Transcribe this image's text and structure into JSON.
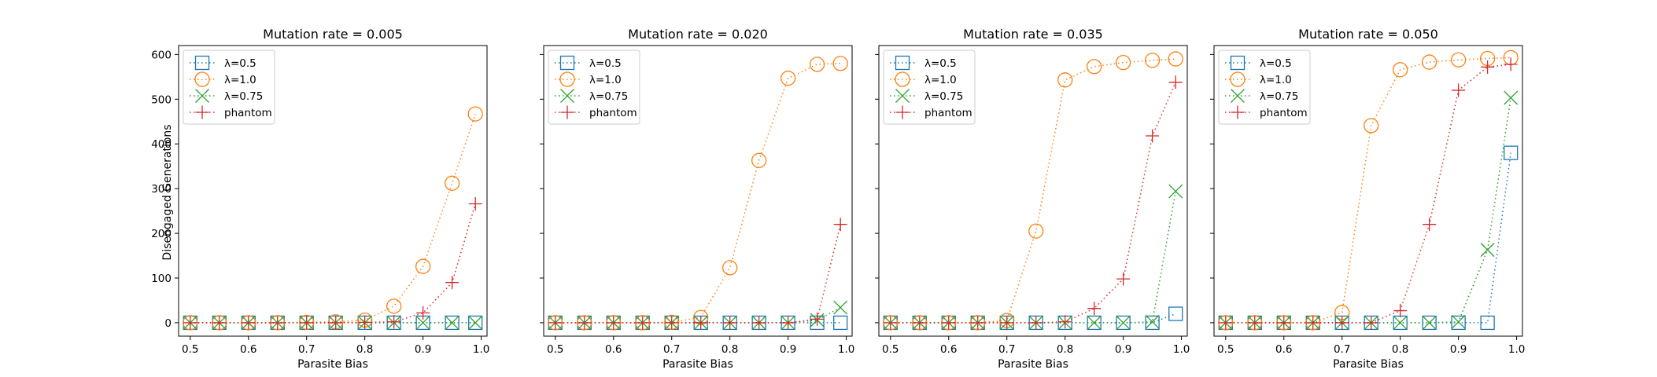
{
  "figure": {
    "shared_ylabel": "Disengaged Generations",
    "shared_xlabel": "Parasite Bias"
  },
  "legend_labels": [
    "λ=0.5",
    "λ=1.0",
    "λ=0.75",
    "phantom"
  ],
  "chart_data": [
    {
      "type": "line",
      "title": "Mutation rate = 0.005",
      "xlabel": "Parasite Bias",
      "ylabel": "Disengaged Generations",
      "x": [
        0.5,
        0.55,
        0.6,
        0.65,
        0.7,
        0.75,
        0.8,
        0.85,
        0.9,
        0.95,
        0.99
      ],
      "xlim": [
        0.48,
        1.01
      ],
      "ylim": [
        -30,
        620
      ],
      "xticks": [
        "0.5",
        "0.6",
        "0.7",
        "0.8",
        "0.9",
        "1.0"
      ],
      "yticks": [
        "0",
        "100",
        "200",
        "300",
        "400",
        "500",
        "600"
      ],
      "legend": "top-left",
      "series": [
        {
          "name": "λ=0.5",
          "color": "#1f77b4",
          "marker": "square",
          "values": [
            0,
            0,
            0,
            0,
            0,
            0,
            0,
            0,
            0,
            0,
            0
          ]
        },
        {
          "name": "λ=1.0",
          "color": "#ff7f0e",
          "marker": "circle",
          "values": [
            0,
            0,
            0,
            0,
            1,
            2,
            6,
            37,
            126,
            312,
            467
          ]
        },
        {
          "name": "λ=0.75",
          "color": "#2ca02c",
          "marker": "x",
          "values": [
            0,
            0,
            0,
            0,
            0,
            0,
            0,
            0,
            0,
            0,
            0
          ]
        },
        {
          "name": "phantom",
          "color": "#d62728",
          "marker": "plus",
          "values": [
            0,
            0,
            0,
            0,
            0,
            0,
            1,
            2,
            22,
            90,
            266
          ]
        }
      ]
    },
    {
      "type": "line",
      "title": "Mutation rate = 0.020",
      "xlabel": "Parasite Bias",
      "ylabel": "",
      "x": [
        0.5,
        0.55,
        0.6,
        0.65,
        0.7,
        0.75,
        0.8,
        0.85,
        0.9,
        0.95,
        0.99
      ],
      "xlim": [
        0.48,
        1.01
      ],
      "ylim": [
        -30,
        620
      ],
      "xticks": [
        "0.5",
        "0.6",
        "0.7",
        "0.8",
        "0.9",
        "1.0"
      ],
      "legend": "top-left",
      "series": [
        {
          "name": "λ=0.5",
          "color": "#1f77b4",
          "marker": "square",
          "values": [
            0,
            0,
            0,
            0,
            0,
            0,
            0,
            0,
            0,
            0,
            0
          ]
        },
        {
          "name": "λ=1.0",
          "color": "#ff7f0e",
          "marker": "circle",
          "values": [
            0,
            0,
            0,
            0,
            1,
            12,
            123,
            363,
            547,
            578,
            580
          ]
        },
        {
          "name": "λ=0.75",
          "color": "#2ca02c",
          "marker": "x",
          "values": [
            0,
            0,
            0,
            0,
            0,
            0,
            0,
            0,
            0,
            6,
            34
          ]
        },
        {
          "name": "phantom",
          "color": "#d62728",
          "marker": "plus",
          "values": [
            0,
            0,
            0,
            0,
            0,
            0,
            0,
            0,
            0,
            8,
            220
          ]
        }
      ]
    },
    {
      "type": "line",
      "title": "Mutation rate = 0.035",
      "xlabel": "Parasite Bias",
      "ylabel": "",
      "x": [
        0.5,
        0.55,
        0.6,
        0.65,
        0.7,
        0.75,
        0.8,
        0.85,
        0.9,
        0.95,
        0.99
      ],
      "xlim": [
        0.48,
        1.01
      ],
      "ylim": [
        -30,
        620
      ],
      "xticks": [
        "0.5",
        "0.6",
        "0.7",
        "0.8",
        "0.9",
        "1.0"
      ],
      "legend": "top-left",
      "series": [
        {
          "name": "λ=0.5",
          "color": "#1f77b4",
          "marker": "square",
          "values": [
            0,
            0,
            0,
            0,
            0,
            0,
            0,
            0,
            0,
            0,
            20
          ]
        },
        {
          "name": "λ=1.0",
          "color": "#ff7f0e",
          "marker": "circle",
          "values": [
            0,
            0,
            0,
            0,
            5,
            205,
            543,
            573,
            582,
            587,
            590
          ]
        },
        {
          "name": "λ=0.75",
          "color": "#2ca02c",
          "marker": "x",
          "values": [
            0,
            0,
            0,
            0,
            0,
            0,
            0,
            0,
            0,
            2,
            294
          ]
        },
        {
          "name": "phantom",
          "color": "#d62728",
          "marker": "plus",
          "values": [
            0,
            0,
            0,
            0,
            0,
            0,
            2,
            32,
            98,
            418,
            538
          ]
        }
      ]
    },
    {
      "type": "line",
      "title": "Mutation rate = 0.050",
      "xlabel": "Parasite Bias",
      "ylabel": "",
      "x": [
        0.5,
        0.55,
        0.6,
        0.65,
        0.7,
        0.75,
        0.8,
        0.85,
        0.9,
        0.95,
        0.99
      ],
      "xlim": [
        0.48,
        1.01
      ],
      "ylim": [
        -30,
        620
      ],
      "xticks": [
        "0.5",
        "0.6",
        "0.7",
        "0.8",
        "0.9",
        "1.0"
      ],
      "legend": "top-left",
      "series": [
        {
          "name": "λ=0.5",
          "color": "#1f77b4",
          "marker": "square",
          "values": [
            0,
            0,
            0,
            0,
            0,
            0,
            0,
            0,
            0,
            0,
            380
          ]
        },
        {
          "name": "λ=1.0",
          "color": "#ff7f0e",
          "marker": "circle",
          "values": [
            0,
            0,
            0,
            0,
            23,
            441,
            566,
            583,
            588,
            591,
            593
          ]
        },
        {
          "name": "λ=0.75",
          "color": "#2ca02c",
          "marker": "x",
          "values": [
            0,
            0,
            0,
            0,
            0,
            0,
            0,
            0,
            2,
            163,
            503
          ]
        },
        {
          "name": "phantom",
          "color": "#d62728",
          "marker": "plus",
          "values": [
            0,
            0,
            0,
            0,
            0,
            0,
            27,
            220,
            520,
            572,
            578
          ]
        }
      ]
    }
  ]
}
